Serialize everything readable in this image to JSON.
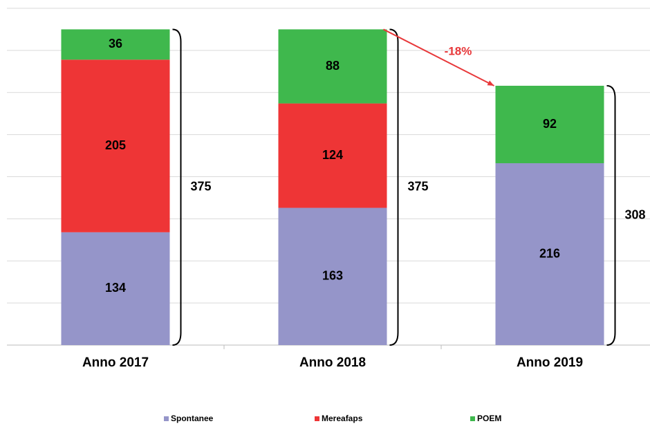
{
  "chart_data": {
    "type": "stacked_bar",
    "categories": [
      "Anno 2017",
      "Anno 2018",
      "Anno 2019"
    ],
    "series": [
      {
        "name": "Spontanee",
        "color": "#9595c9",
        "values": [
          134,
          163,
          216
        ]
      },
      {
        "name": "Mereafaps",
        "color": "#ee3536",
        "values": [
          205,
          124,
          null
        ]
      },
      {
        "name": "POEM",
        "color": "#3fb84d",
        "values": [
          36,
          88,
          92
        ]
      }
    ],
    "totals": [
      375,
      375,
      308
    ],
    "annotation": "-18%",
    "annotation_color": "#e8383a",
    "ylim": [
      0,
      400
    ],
    "yticks": [
      0,
      50,
      100,
      150,
      200,
      250,
      300,
      350,
      400
    ],
    "grid": true,
    "legend": "bottom"
  }
}
